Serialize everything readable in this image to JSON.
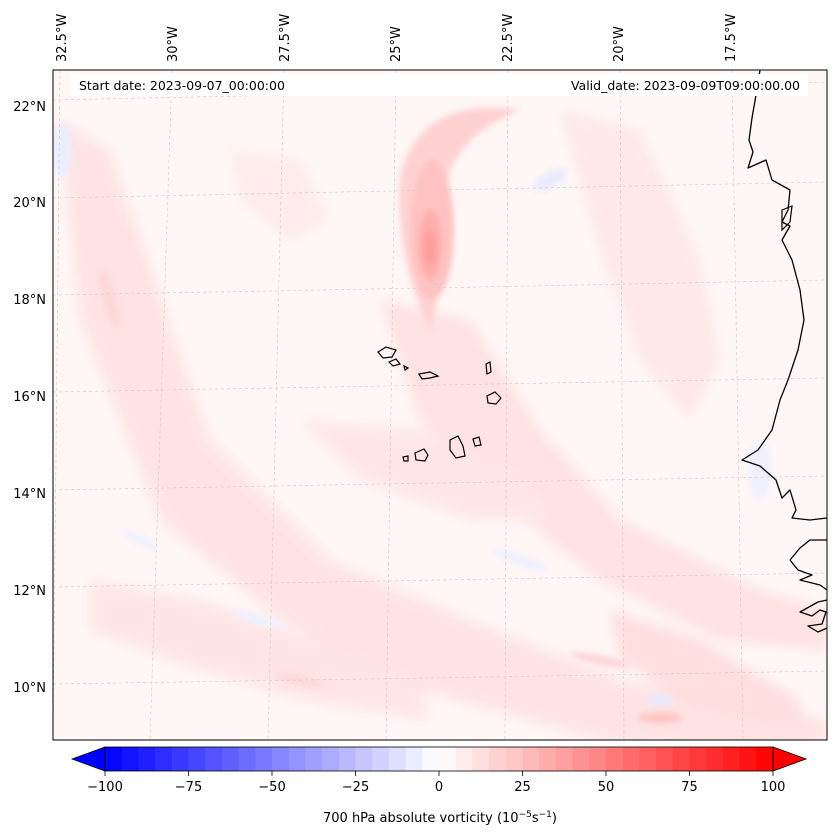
{
  "map": {
    "start_date_text": "Start date: 2023-09-07_00:00:00",
    "valid_date_text": "Valid_date: 2023-09-09T09:00:00.00",
    "lon_labels": [
      "32.5°W",
      "30°W",
      "27.5°W",
      "25°W",
      "22.5°W",
      "20°W",
      "17.5°W"
    ],
    "lat_labels": [
      "22°N",
      "20°N",
      "18°N",
      "16°N",
      "14°N",
      "12°N",
      "10°N"
    ],
    "features": [
      "cabo-verde-islands",
      "west-africa-coastline"
    ]
  },
  "colorbar": {
    "label_text": "700 hPa absolute vorticity (10",
    "label_exp1": "−5",
    "label_mid": "s",
    "label_exp2": "−1",
    "label_end": ")",
    "ticks": [
      "−100",
      "−75",
      "−50",
      "−25",
      "0",
      "25",
      "50",
      "75",
      "100"
    ],
    "min": -100,
    "max": 100,
    "neg_color": "#0000ff",
    "pos_color": "#ff0000"
  }
}
